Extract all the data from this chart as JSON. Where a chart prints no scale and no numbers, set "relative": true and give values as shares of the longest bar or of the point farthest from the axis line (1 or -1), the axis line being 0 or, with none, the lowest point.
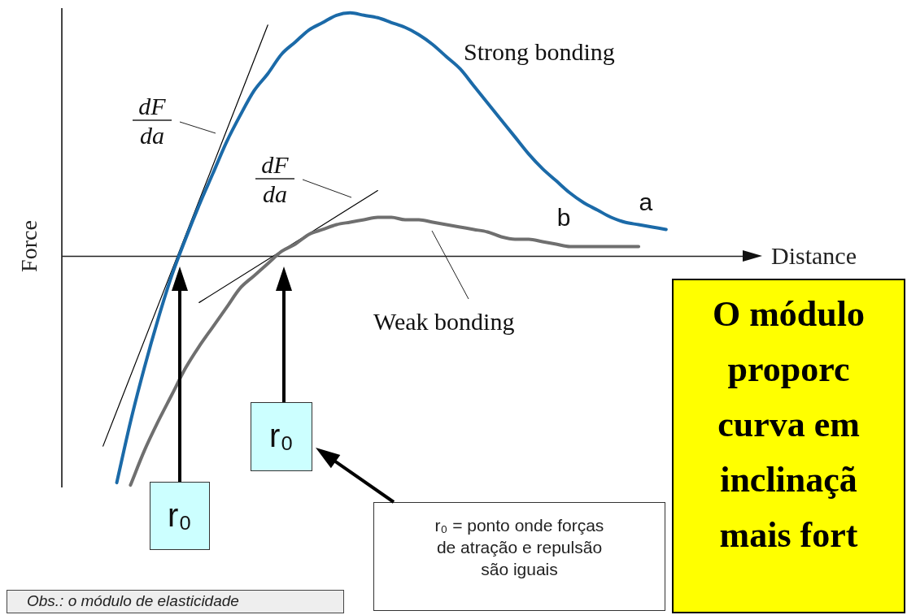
{
  "chart_data": {
    "type": "line",
    "relative": true,
    "xlabel": "Distance",
    "ylabel": "Force",
    "categories": [
      null,
      null,
      null,
      null,
      null,
      null,
      null,
      null,
      null,
      null,
      null,
      null,
      null,
      null,
      null,
      null,
      null,
      null,
      null,
      null,
      null,
      null,
      null,
      null,
      null,
      null,
      null,
      null,
      null,
      null,
      null,
      null,
      null,
      null,
      null,
      null,
      null,
      null,
      null,
      null,
      null,
      null,
      null,
      null,
      null,
      null,
      null,
      null,
      null,
      null,
      null,
      null
    ],
    "series": [
      {
        "name": "a",
        "color": "#1b6aa8",
        "values": [
          null,
          null,
          null,
          null,
          -0.93,
          -0.68,
          -0.46,
          -0.26,
          -0.08,
          0.07,
          0.21,
          0.34,
          0.47,
          0.58,
          0.68,
          0.75,
          0.83,
          0.88,
          0.93,
          0.96,
          0.99,
          1,
          0.99,
          0.98,
          0.96,
          0.94,
          0.91,
          0.87,
          0.82,
          0.77,
          0.7,
          0.63,
          0.56,
          0.49,
          0.42,
          0.36,
          0.31,
          0.26,
          0.22,
          0.19,
          0.16,
          0.14,
          0.13,
          0.12,
          0.11,
          null,
          null,
          null,
          null,
          null,
          null,
          null
        ]
      },
      {
        "name": "b",
        "color": "#6f6f6f",
        "values": [
          null,
          null,
          null,
          null,
          null,
          -0.94,
          -0.8,
          -0.68,
          -0.57,
          -0.46,
          -0.37,
          -0.29,
          -0.21,
          -0.13,
          -0.08,
          -0.03,
          0.02,
          0.05,
          0.09,
          0.11,
          0.13,
          0.14,
          0.15,
          0.16,
          0.16,
          0.15,
          0.15,
          0.14,
          0.13,
          0.12,
          0.11,
          0.1,
          0.08,
          0.07,
          0.07,
          0.06,
          0.05,
          0.04,
          0.04,
          0.04,
          0.04,
          0.04,
          0.04,
          null,
          null,
          null,
          null,
          null,
          null,
          null,
          null,
          null
        ]
      },
      {
        "color": "#000000",
        "values": [
          null,
          null,
          null,
          -0.78,
          null,
          null,
          null,
          null,
          null,
          null,
          null,
          null,
          null,
          null,
          null,
          0.95,
          null,
          null,
          null,
          null,
          null,
          null,
          null,
          null,
          null,
          null,
          null,
          null,
          null,
          null,
          null,
          null,
          null,
          null,
          null,
          null,
          null,
          null,
          null,
          null,
          null,
          null,
          null,
          null,
          null,
          null,
          null,
          null,
          null,
          null,
          null,
          null
        ]
      },
      {
        "color": "#000000",
        "values": [
          null,
          null,
          null,
          null,
          null,
          null,
          null,
          null,
          null,
          null,
          -0.19,
          null,
          null,
          null,
          null,
          null,
          null,
          null,
          null,
          null,
          null,
          null,
          null,
          0.27,
          null,
          null,
          null,
          null,
          null,
          null,
          null,
          null,
          null,
          null,
          null,
          null,
          null,
          null,
          null,
          null,
          null,
          null,
          null,
          null,
          null,
          null,
          null,
          null,
          null,
          null,
          null,
          null
        ]
      }
    ],
    "annotations": [
      "Strong bonding",
      "Weak bonding",
      "dF\nda",
      "dF\nda",
      "r₀",
      "r₀",
      "r₀ = ponto onde forças de atração e repulsão são iguais",
      "Obs.: o módulo de elasticidade",
      "O módulo\nproporc\ncurva em\ninclinaçã\nmais fort"
    ]
  }
}
